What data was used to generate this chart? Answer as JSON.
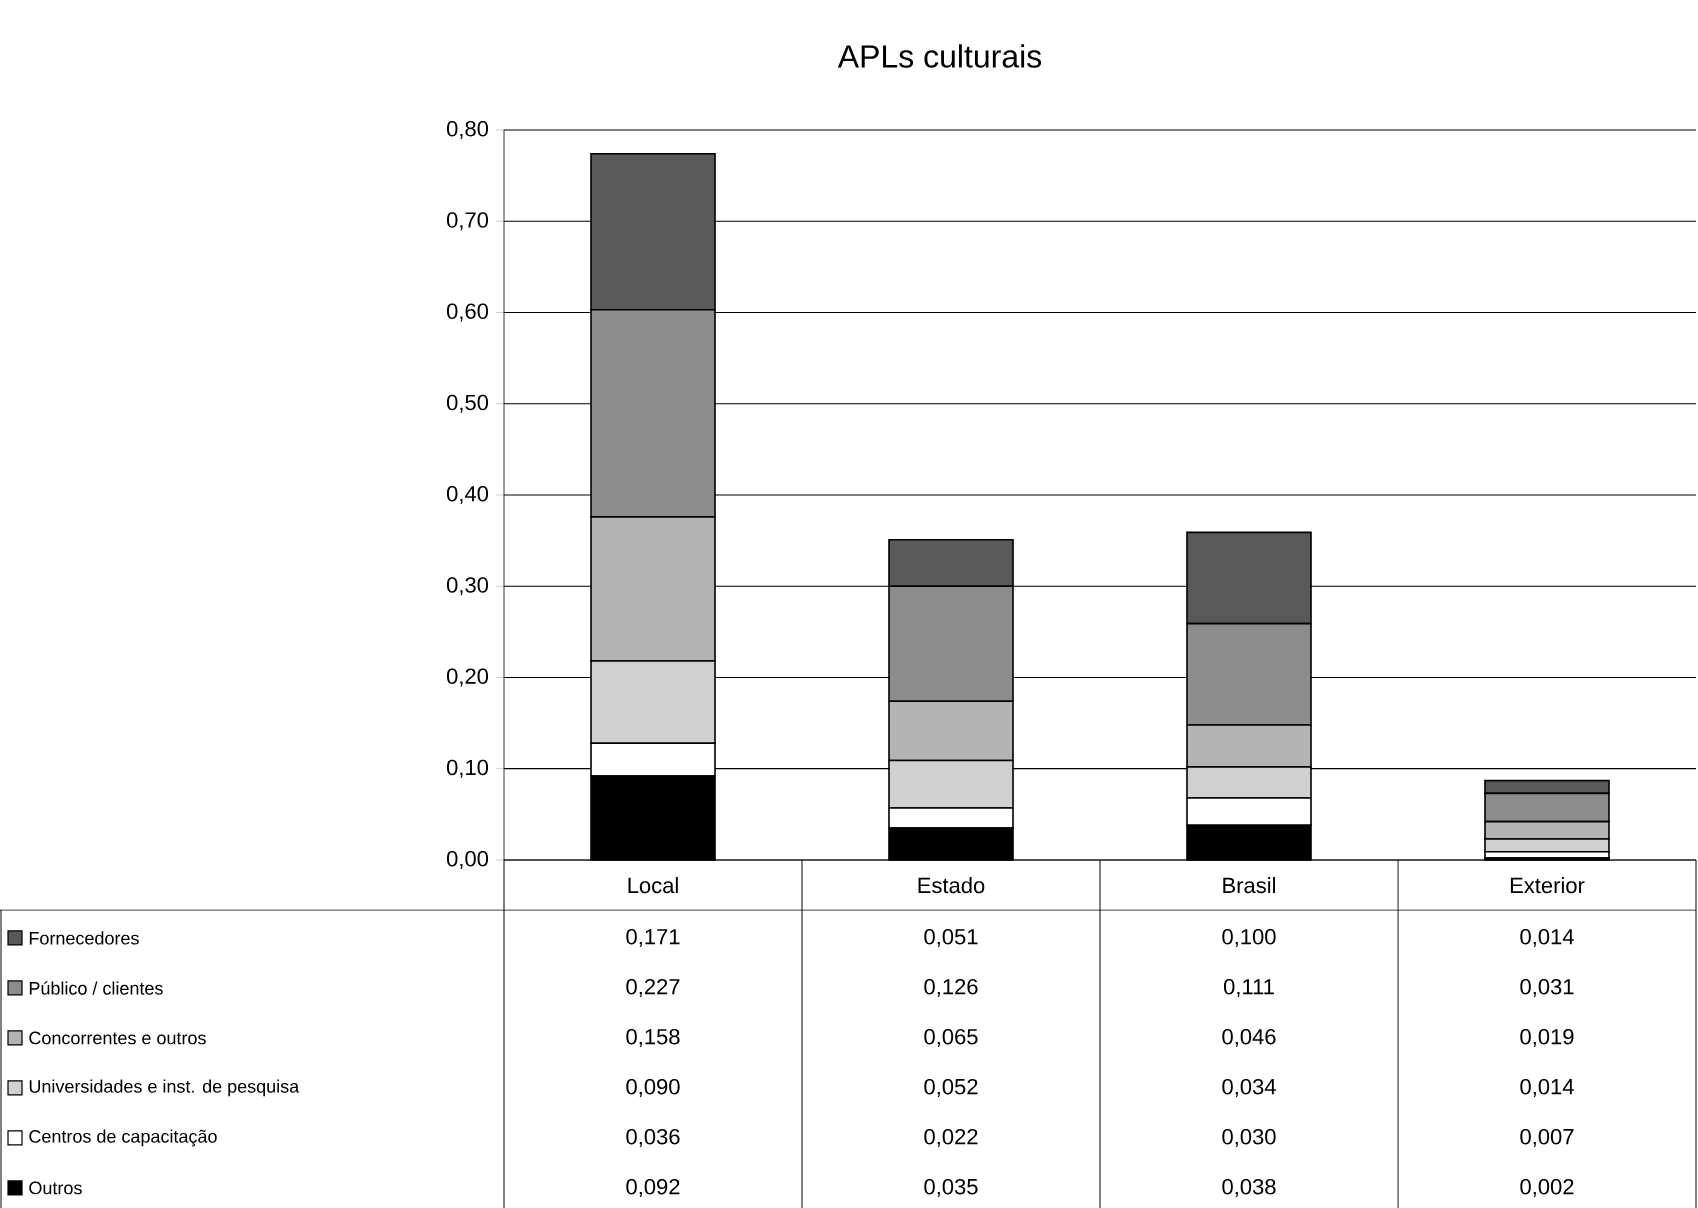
{
  "chart_data": {
    "type": "bar",
    "stacked": true,
    "title": "APLs culturais",
    "categories": [
      "Local",
      "Estado",
      "Brasil",
      "Exterior"
    ],
    "series": [
      {
        "name": "Outros",
        "color": "#000000",
        "values": [
          0.092,
          0.035,
          0.038,
          0.002
        ],
        "value_labels": [
          "0,092",
          "0,035",
          "0,038",
          "0,002"
        ]
      },
      {
        "name": "Centros de capacitação",
        "color": "#ffffff",
        "values": [
          0.036,
          0.022,
          0.03,
          0.007
        ],
        "value_labels": [
          "0,036",
          "0,022",
          "0,030",
          "0,007"
        ]
      },
      {
        "name": "Universidades e inst. de pesquisa",
        "color": "#d0d0d0",
        "values": [
          0.09,
          0.052,
          0.034,
          0.014
        ],
        "value_labels": [
          "0,090",
          "0,052",
          "0,034",
          "0,014"
        ]
      },
      {
        "name": "Concorrentes e outros",
        "color": "#b3b3b3",
        "values": [
          0.158,
          0.065,
          0.046,
          0.019
        ],
        "value_labels": [
          "0,158",
          "0,065",
          "0,046",
          "0,019"
        ]
      },
      {
        "name": "Público / clientes",
        "color": "#8c8c8c",
        "values": [
          0.227,
          0.126,
          0.111,
          0.031
        ],
        "value_labels": [
          "0,227",
          "0,126",
          "0,111",
          "0,031"
        ]
      },
      {
        "name": "Fornecedores",
        "color": "#595959",
        "values": [
          0.171,
          0.051,
          0.1,
          0.014
        ],
        "value_labels": [
          "0,171",
          "0,051",
          "0,100",
          "0,014"
        ]
      }
    ],
    "ylim": [
      0,
      0.8
    ],
    "yticks": [
      {
        "value": 0,
        "label": "0,00"
      },
      {
        "value": 0.1,
        "label": "0,10"
      },
      {
        "value": 0.2,
        "label": "0,20"
      },
      {
        "value": 0.3,
        "label": "0,30"
      },
      {
        "value": 0.4,
        "label": "0,40"
      },
      {
        "value": 0.5,
        "label": "0,50"
      },
      {
        "value": 0.6,
        "label": "0,60"
      },
      {
        "value": 0.7,
        "label": "0,70"
      },
      {
        "value": 0.8,
        "label": "0,80"
      }
    ],
    "grid": "y",
    "legend": "bottom left"
  }
}
